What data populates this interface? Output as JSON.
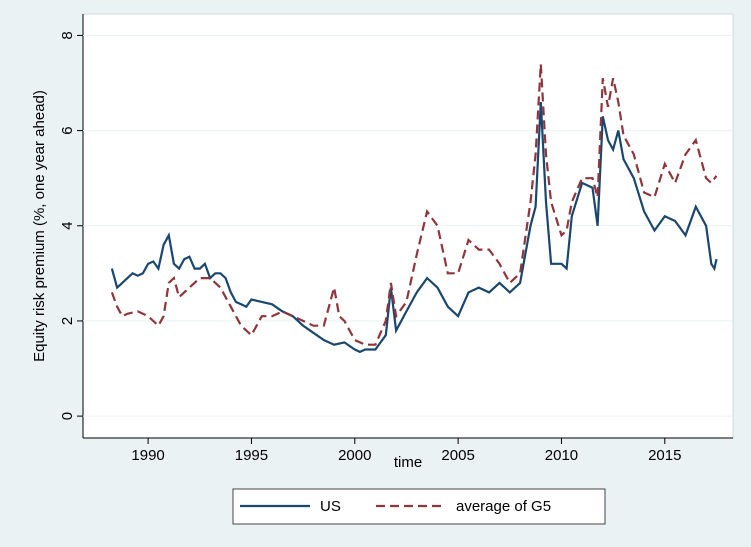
{
  "chart_data": {
    "type": "line",
    "x_label": "time",
    "y_label": "Equity risk premium (%, one year ahead)",
    "xlim": [
      1986.85,
      2018.3
    ],
    "ylim": [
      -0.46,
      8.45
    ],
    "xticks": [
      1990,
      1995,
      2000,
      2005,
      2010,
      2015
    ],
    "yticks": [
      0,
      2,
      4,
      6,
      8
    ],
    "grid": true,
    "legend": "bottom",
    "series": [
      {
        "name": "US",
        "color": "#1a476f",
        "dash": false,
        "x": [
          1988.25,
          1988.5,
          1988.75,
          1989,
          1989.25,
          1989.5,
          1989.75,
          1990,
          1990.25,
          1990.5,
          1990.75,
          1991,
          1991.25,
          1991.5,
          1991.75,
          1992,
          1992.25,
          1992.5,
          1992.75,
          1993,
          1993.25,
          1993.5,
          1993.75,
          1994,
          1994.25,
          1994.5,
          1994.75,
          1995,
          1995.5,
          1996,
          1996.5,
          1997,
          1997.5,
          1998,
          1998.5,
          1999,
          1999.5,
          2000,
          2000.25,
          2000.5,
          2001,
          2001.5,
          2001.75,
          2002,
          2002.5,
          2003,
          2003.5,
          2004,
          2004.5,
          2005,
          2005.5,
          2006,
          2006.5,
          2007,
          2007.5,
          2008,
          2008.5,
          2008.75,
          2009,
          2009.25,
          2009.5,
          2010,
          2010.25,
          2010.5,
          2011,
          2011.5,
          2011.75,
          2012,
          2012.25,
          2012.5,
          2012.75,
          2013,
          2013.5,
          2014,
          2014.5,
          2015,
          2015.5,
          2016,
          2016.5,
          2017,
          2017.25,
          2017.4,
          2017.5
        ],
        "values": [
          3.1,
          2.7,
          2.8,
          2.9,
          3.0,
          2.95,
          3.0,
          3.2,
          3.25,
          3.1,
          3.6,
          3.8,
          3.2,
          3.1,
          3.3,
          3.35,
          3.1,
          3.1,
          3.2,
          2.9,
          3.0,
          3.0,
          2.9,
          2.6,
          2.4,
          2.35,
          2.3,
          2.45,
          2.4,
          2.35,
          2.2,
          2.1,
          1.9,
          1.75,
          1.6,
          1.5,
          1.55,
          1.4,
          1.35,
          1.4,
          1.4,
          1.7,
          2.7,
          1.8,
          2.2,
          2.6,
          2.9,
          2.7,
          2.3,
          2.1,
          2.6,
          2.7,
          2.6,
          2.8,
          2.6,
          2.8,
          4.0,
          4.4,
          6.6,
          4.5,
          3.2,
          3.2,
          3.1,
          4.2,
          4.9,
          4.8,
          4.0,
          6.3,
          5.8,
          5.6,
          6.0,
          5.4,
          5.0,
          4.3,
          3.9,
          4.2,
          4.1,
          3.8,
          4.4,
          4.0,
          3.2,
          3.1,
          3.3
        ]
      },
      {
        "name": "average of G5",
        "color": "#90353b",
        "dash": true,
        "x": [
          1988.25,
          1988.5,
          1988.75,
          1989,
          1989.5,
          1990,
          1990.5,
          1990.75,
          1991,
          1991.25,
          1991.5,
          1992,
          1992.5,
          1993,
          1993.5,
          1994,
          1994.5,
          1995,
          1995.5,
          1996,
          1996.5,
          1997,
          1997.5,
          1998,
          1998.5,
          1999,
          1999.25,
          1999.5,
          2000,
          2000.5,
          2001,
          2001.5,
          2001.75,
          2002,
          2002.5,
          2003,
          2003.5,
          2004,
          2004.5,
          2005,
          2005.5,
          2006,
          2006.5,
          2007,
          2007.5,
          2008,
          2008.5,
          2008.75,
          2009,
          2009.25,
          2009.5,
          2010,
          2010.25,
          2010.5,
          2011,
          2011.5,
          2011.75,
          2012,
          2012.25,
          2012.5,
          2012.75,
          2013,
          2013.5,
          2014,
          2014.5,
          2015,
          2015.5,
          2016,
          2016.5,
          2017,
          2017.25,
          2017.5
        ],
        "values": [
          2.6,
          2.3,
          2.1,
          2.15,
          2.2,
          2.1,
          1.9,
          2.1,
          2.8,
          2.9,
          2.5,
          2.7,
          2.9,
          2.9,
          2.7,
          2.3,
          1.9,
          1.7,
          2.1,
          2.1,
          2.2,
          2.1,
          2.0,
          1.9,
          1.9,
          2.7,
          2.1,
          2.0,
          1.6,
          1.5,
          1.5,
          2.0,
          2.8,
          2.1,
          2.4,
          3.4,
          4.3,
          4.0,
          3.0,
          3.0,
          3.7,
          3.5,
          3.5,
          3.2,
          2.8,
          3.0,
          4.5,
          5.5,
          7.4,
          5.5,
          4.5,
          3.8,
          3.9,
          4.5,
          5.0,
          5.0,
          4.6,
          7.1,
          6.5,
          7.1,
          6.6,
          5.9,
          5.5,
          4.7,
          4.6,
          5.3,
          4.9,
          5.5,
          5.8,
          5.0,
          4.9,
          5.05
        ]
      }
    ]
  }
}
